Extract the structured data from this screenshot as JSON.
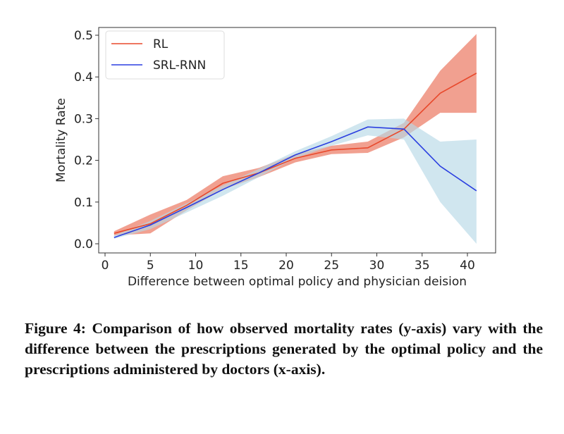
{
  "chart_data": {
    "type": "line",
    "title": "",
    "xlabel": "Difference between optimal policy and physician deision",
    "ylabel": "Mortality Rate",
    "xlim": [
      -1,
      43
    ],
    "ylim": [
      -0.02,
      0.52
    ],
    "xticks": [
      0,
      5,
      10,
      15,
      20,
      25,
      30,
      35,
      40
    ],
    "xtick_labels": [
      "0",
      "5",
      "10",
      "15",
      "20",
      "25",
      "30",
      "35",
      "40"
    ],
    "yticks": [
      0.0,
      0.1,
      0.2,
      0.3,
      0.4,
      0.5
    ],
    "ytick_labels": [
      "0.0",
      "0.1",
      "0.2",
      "0.3",
      "0.4",
      "0.5"
    ],
    "grid": false,
    "legend": "top-left",
    "x": [
      1,
      5,
      9,
      13,
      17,
      21,
      25,
      29,
      33,
      37,
      41
    ],
    "series": [
      {
        "name": "RL",
        "color": "#e8492c",
        "band_color": "#ef8f7c",
        "values": [
          0.025,
          0.048,
          0.092,
          0.145,
          0.17,
          0.205,
          0.225,
          0.23,
          0.275,
          0.361,
          0.409
        ],
        "lower": [
          0.02,
          0.025,
          0.08,
          0.13,
          0.16,
          0.195,
          0.215,
          0.218,
          0.255,
          0.314,
          0.314
        ],
        "upper": [
          0.03,
          0.07,
          0.105,
          0.162,
          0.182,
          0.215,
          0.235,
          0.245,
          0.29,
          0.415,
          0.503
        ]
      },
      {
        "name": "SRL-RNN",
        "color": "#2b3fe0",
        "band_color": "#b7d9e6",
        "values": [
          0.015,
          0.045,
          0.087,
          0.13,
          0.17,
          0.213,
          0.245,
          0.28,
          0.275,
          0.186,
          0.127
        ],
        "lower": [
          0.012,
          0.035,
          0.075,
          0.115,
          0.16,
          0.205,
          0.235,
          0.26,
          0.25,
          0.1,
          0.0
        ],
        "upper": [
          0.02,
          0.055,
          0.097,
          0.14,
          0.18,
          0.222,
          0.258,
          0.298,
          0.3,
          0.245,
          0.25
        ]
      }
    ]
  },
  "caption": "Figure 4: Comparison of how observed mortality rates (y-axis) vary with the difference between the prescriptions generated by the optimal policy and the prescriptions administered by doctors (x-axis)."
}
